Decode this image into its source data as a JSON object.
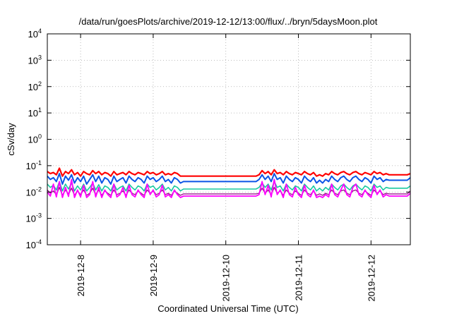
{
  "chart_data": {
    "type": "line",
    "title": "/data/run/goesPlots/archive/2019-12-12/13:00/flux/../bryn/5daysMoon.plot",
    "xlabel": "Coordinated Universal Time (UTC)",
    "ylabel": "cSv/day",
    "yscale": "log",
    "ylim": [
      0.0001,
      10000
    ],
    "y_ticks": [
      {
        "base": "10",
        "exp": "4",
        "value": 10000
      },
      {
        "base": "10",
        "exp": "3",
        "value": 1000
      },
      {
        "base": "10",
        "exp": "2",
        "value": 100
      },
      {
        "base": "10",
        "exp": "1",
        "value": 10
      },
      {
        "base": "10",
        "exp": "0",
        "value": 1
      },
      {
        "base": "10",
        "exp": "-1",
        "value": 0.1
      },
      {
        "base": "10",
        "exp": "-2",
        "value": 0.01
      },
      {
        "base": "10",
        "exp": "-3",
        "value": 0.001
      },
      {
        "base": "10",
        "exp": "-4",
        "value": 0.0001
      }
    ],
    "x_ticks": [
      "2019-12-8",
      "2019-12-9",
      "2019-12-10",
      "2019-12-11",
      "2019-12-12"
    ],
    "xlim": [
      "2019-12-07 13:00",
      "2019-12-12 13:00"
    ],
    "grid": true,
    "legend": "none",
    "x_start": "2019-12-07 13:00",
    "x_step_hours": 1,
    "series": [
      {
        "color": "#ff0000",
        "width": 2.2,
        "values": [
          0.06,
          0.05,
          0.055,
          0.045,
          0.08,
          0.04,
          0.06,
          0.05,
          0.07,
          0.045,
          0.055,
          0.04,
          0.06,
          0.05,
          0.045,
          0.065,
          0.05,
          0.06,
          0.045,
          0.055,
          0.05,
          0.04,
          0.06,
          0.045,
          0.05,
          0.055,
          0.045,
          0.06,
          0.05,
          0.045,
          0.055,
          0.05,
          0.045,
          0.06,
          0.05,
          0.055,
          0.045,
          0.05,
          0.06,
          0.045,
          0.05,
          0.045,
          0.055,
          0.05,
          0.04,
          0.04,
          0.04,
          0.04,
          0.04,
          0.04,
          0.04,
          0.04,
          0.04,
          0.04,
          0.04,
          0.04,
          0.04,
          0.04,
          0.04,
          0.04,
          0.04,
          0.04,
          0.04,
          0.04,
          0.04,
          0.04,
          0.04,
          0.04,
          0.04,
          0.04,
          0.045,
          0.065,
          0.05,
          0.06,
          0.045,
          0.07,
          0.05,
          0.055,
          0.045,
          0.06,
          0.05,
          0.045,
          0.055,
          0.05,
          0.045,
          0.06,
          0.05,
          0.045,
          0.055,
          0.04,
          0.045,
          0.04,
          0.05,
          0.045,
          0.06,
          0.05,
          0.045,
          0.055,
          0.06,
          0.05,
          0.045,
          0.055,
          0.06,
          0.05,
          0.045,
          0.055,
          0.05,
          0.045,
          0.06,
          0.05,
          0.055,
          0.045,
          0.05,
          0.045,
          0.045,
          0.045,
          0.045,
          0.045,
          0.045,
          0.045,
          0.05
        ]
      },
      {
        "color": "#0b55e6",
        "width": 2,
        "values": [
          0.04,
          0.03,
          0.035,
          0.025,
          0.05,
          0.02,
          0.04,
          0.028,
          0.045,
          0.022,
          0.035,
          0.025,
          0.04,
          0.02,
          0.03,
          0.045,
          0.025,
          0.04,
          0.022,
          0.035,
          0.03,
          0.02,
          0.04,
          0.025,
          0.03,
          0.035,
          0.022,
          0.04,
          0.03,
          0.025,
          0.035,
          0.03,
          0.022,
          0.04,
          0.03,
          0.035,
          0.025,
          0.03,
          0.04,
          0.025,
          0.03,
          0.022,
          0.035,
          0.03,
          0.022,
          0.025,
          0.025,
          0.025,
          0.025,
          0.025,
          0.025,
          0.025,
          0.025,
          0.025,
          0.025,
          0.025,
          0.025,
          0.025,
          0.025,
          0.025,
          0.025,
          0.025,
          0.025,
          0.025,
          0.025,
          0.025,
          0.025,
          0.025,
          0.025,
          0.025,
          0.03,
          0.045,
          0.03,
          0.04,
          0.025,
          0.05,
          0.03,
          0.035,
          0.022,
          0.04,
          0.03,
          0.025,
          0.035,
          0.03,
          0.022,
          0.04,
          0.03,
          0.025,
          0.035,
          0.022,
          0.028,
          0.022,
          0.03,
          0.025,
          0.04,
          0.03,
          0.025,
          0.035,
          0.04,
          0.03,
          0.025,
          0.035,
          0.04,
          0.03,
          0.025,
          0.035,
          0.03,
          0.022,
          0.04,
          0.03,
          0.035,
          0.025,
          0.03,
          0.028,
          0.028,
          0.028,
          0.028,
          0.028,
          0.028,
          0.028,
          0.035
        ]
      },
      {
        "color": "#19c9a0",
        "width": 1.6,
        "values": [
          0.02,
          0.015,
          0.018,
          0.012,
          0.025,
          0.011,
          0.02,
          0.013,
          0.022,
          0.011,
          0.017,
          0.012,
          0.02,
          0.011,
          0.015,
          0.022,
          0.012,
          0.019,
          0.011,
          0.017,
          0.015,
          0.011,
          0.02,
          0.012,
          0.015,
          0.017,
          0.011,
          0.02,
          0.015,
          0.012,
          0.017,
          0.015,
          0.011,
          0.02,
          0.015,
          0.017,
          0.012,
          0.015,
          0.02,
          0.012,
          0.015,
          0.011,
          0.017,
          0.015,
          0.011,
          0.013,
          0.013,
          0.013,
          0.013,
          0.013,
          0.013,
          0.013,
          0.013,
          0.013,
          0.013,
          0.013,
          0.013,
          0.013,
          0.013,
          0.013,
          0.013,
          0.013,
          0.013,
          0.013,
          0.013,
          0.013,
          0.013,
          0.013,
          0.013,
          0.013,
          0.015,
          0.022,
          0.015,
          0.02,
          0.012,
          0.025,
          0.015,
          0.017,
          0.011,
          0.02,
          0.015,
          0.012,
          0.017,
          0.015,
          0.011,
          0.02,
          0.015,
          0.012,
          0.017,
          0.011,
          0.014,
          0.011,
          0.015,
          0.012,
          0.02,
          0.015,
          0.012,
          0.017,
          0.02,
          0.015,
          0.012,
          0.017,
          0.02,
          0.015,
          0.012,
          0.017,
          0.015,
          0.011,
          0.02,
          0.015,
          0.017,
          0.012,
          0.015,
          0.014,
          0.014,
          0.014,
          0.014,
          0.014,
          0.014,
          0.014,
          0.017
        ]
      },
      {
        "color": "#9b1a8f",
        "width": 1.4,
        "values": [
          0.012,
          0.009,
          0.011,
          0.008,
          0.015,
          0.0075,
          0.012,
          0.0085,
          0.014,
          0.0075,
          0.011,
          0.008,
          0.012,
          0.0075,
          0.009,
          0.014,
          0.008,
          0.012,
          0.0075,
          0.011,
          0.009,
          0.0075,
          0.012,
          0.008,
          0.009,
          0.011,
          0.0075,
          0.012,
          0.009,
          0.008,
          0.011,
          0.009,
          0.0075,
          0.012,
          0.009,
          0.011,
          0.008,
          0.009,
          0.012,
          0.008,
          0.009,
          0.0075,
          0.011,
          0.009,
          0.0075,
          0.0085,
          0.0085,
          0.0085,
          0.0085,
          0.0085,
          0.0085,
          0.0085,
          0.0085,
          0.0085,
          0.0085,
          0.0085,
          0.0085,
          0.0085,
          0.0085,
          0.0085,
          0.0085,
          0.0085,
          0.0085,
          0.0085,
          0.0085,
          0.0085,
          0.0085,
          0.0085,
          0.0085,
          0.0085,
          0.009,
          0.014,
          0.009,
          0.012,
          0.008,
          0.015,
          0.009,
          0.011,
          0.0075,
          0.012,
          0.009,
          0.008,
          0.011,
          0.009,
          0.0075,
          0.012,
          0.009,
          0.008,
          0.011,
          0.0075,
          0.0085,
          0.0075,
          0.009,
          0.008,
          0.012,
          0.009,
          0.008,
          0.011,
          0.012,
          0.009,
          0.008,
          0.011,
          0.012,
          0.009,
          0.008,
          0.011,
          0.009,
          0.0075,
          0.012,
          0.009,
          0.011,
          0.008,
          0.009,
          0.0085,
          0.0085,
          0.0085,
          0.0085,
          0.0085,
          0.0085,
          0.0085,
          0.011
        ]
      },
      {
        "color": "#ff00ff",
        "width": 1.8,
        "values": [
          0.01,
          0.007,
          0.02,
          0.0065,
          0.025,
          0.0062,
          0.015,
          0.0068,
          0.03,
          0.0062,
          0.012,
          0.0065,
          0.018,
          0.0062,
          0.008,
          0.025,
          0.0065,
          0.015,
          0.0062,
          0.012,
          0.008,
          0.0062,
          0.02,
          0.0065,
          0.008,
          0.015,
          0.0062,
          0.018,
          0.008,
          0.0065,
          0.012,
          0.008,
          0.0062,
          0.02,
          0.008,
          0.012,
          0.0065,
          0.008,
          0.018,
          0.0065,
          0.008,
          0.0062,
          0.012,
          0.008,
          0.0062,
          0.007,
          0.007,
          0.007,
          0.007,
          0.007,
          0.007,
          0.007,
          0.007,
          0.007,
          0.007,
          0.007,
          0.007,
          0.007,
          0.007,
          0.007,
          0.007,
          0.007,
          0.007,
          0.007,
          0.007,
          0.007,
          0.007,
          0.007,
          0.007,
          0.007,
          0.008,
          0.025,
          0.008,
          0.018,
          0.0065,
          0.03,
          0.008,
          0.012,
          0.0062,
          0.02,
          0.008,
          0.0065,
          0.015,
          0.008,
          0.0062,
          0.018,
          0.008,
          0.0065,
          0.012,
          0.0062,
          0.007,
          0.0062,
          0.008,
          0.0065,
          0.02,
          0.008,
          0.0065,
          0.012,
          0.02,
          0.008,
          0.0065,
          0.015,
          0.02,
          0.008,
          0.0065,
          0.012,
          0.008,
          0.0062,
          0.018,
          0.008,
          0.012,
          0.0065,
          0.008,
          0.007,
          0.007,
          0.007,
          0.007,
          0.007,
          0.007,
          0.007,
          0.009
        ]
      }
    ]
  }
}
